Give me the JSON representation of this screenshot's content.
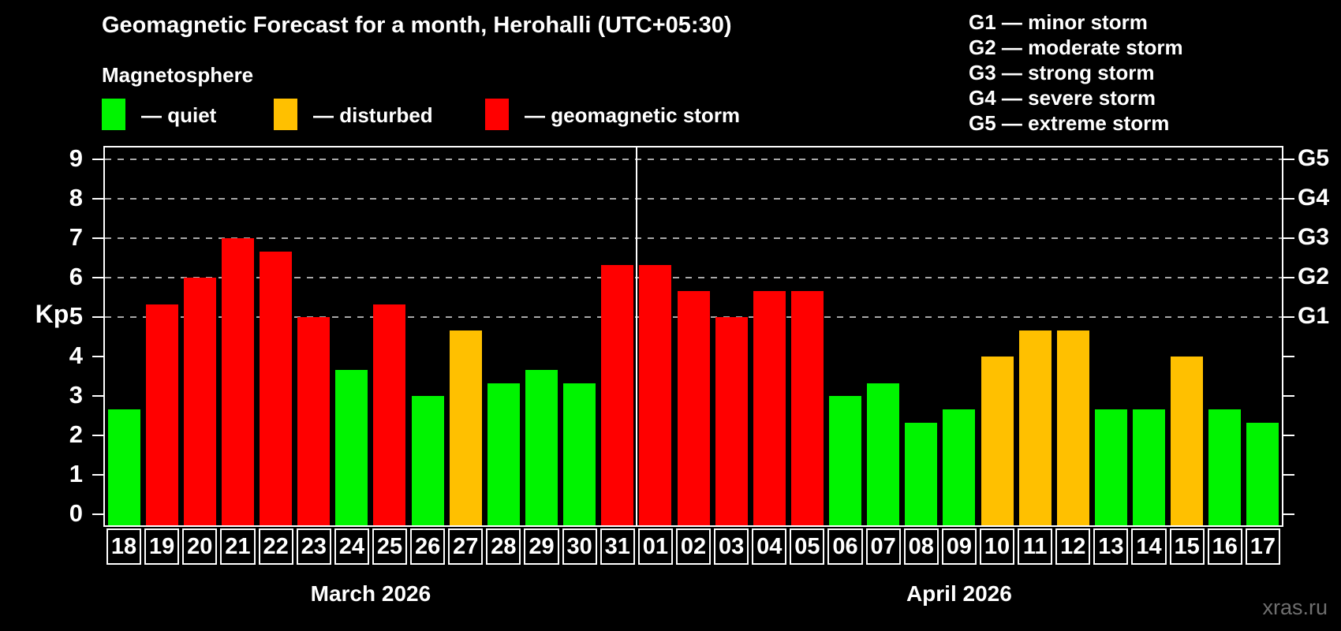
{
  "title": "Geomagnetic Forecast for a month, Herohalli (UTC+05:30)",
  "subtitle": "Magnetosphere",
  "legend": {
    "quiet_label": "— quiet",
    "disturbed_label": "— disturbed",
    "storm_label": "— geomagnetic storm"
  },
  "storm_scale_legend": [
    "G1 — minor storm",
    "G2 — moderate storm",
    "G3 — strong storm",
    "G4 — severe storm",
    "G5 — extreme storm"
  ],
  "watermark": "xras.ru",
  "colors": {
    "quiet": "#00f400",
    "disturbed": "#ffc000",
    "storm": "#ff0000",
    "background": "#000000",
    "text": "#ffffff",
    "grid": "#a8a8a8",
    "watermark": "#6f6f6f"
  },
  "chart_data": {
    "type": "bar",
    "title": "Geomagnetic Forecast for a month, Herohalli (UTC+05:30)",
    "ylabel": "Kp",
    "ylim": [
      -0.32,
      9.34
    ],
    "yticks": [
      0,
      1,
      2,
      3,
      4,
      5,
      6,
      7,
      8,
      9
    ],
    "grid_levels": [
      5,
      6,
      7,
      8,
      9
    ],
    "grid_style": "dashed, levels Kp 5-9 only",
    "legend_position": "top",
    "right_axis_labels": [
      {
        "kp": 5,
        "label": "G1"
      },
      {
        "kp": 6,
        "label": "G2"
      },
      {
        "kp": 7,
        "label": "G3"
      },
      {
        "kp": 8,
        "label": "G4"
      },
      {
        "kp": 9,
        "label": "G5"
      }
    ],
    "months": [
      {
        "label": "March 2026",
        "days": 14
      },
      {
        "label": "April 2026",
        "days": 17
      }
    ],
    "categories": [
      "18",
      "19",
      "20",
      "21",
      "22",
      "23",
      "24",
      "25",
      "26",
      "27",
      "28",
      "29",
      "30",
      "31",
      "01",
      "02",
      "03",
      "04",
      "05",
      "06",
      "07",
      "08",
      "09",
      "10",
      "11",
      "12",
      "13",
      "14",
      "15",
      "16",
      "17"
    ],
    "values": [
      2.67,
      5.33,
      6.0,
      7.0,
      6.67,
      5.0,
      3.67,
      5.33,
      3.0,
      4.67,
      3.33,
      3.67,
      3.33,
      6.33,
      6.33,
      5.67,
      5.0,
      5.67,
      5.67,
      3.0,
      3.33,
      2.33,
      2.67,
      4.0,
      4.67,
      4.67,
      2.67,
      2.67,
      4.0,
      2.67,
      2.33
    ],
    "status": [
      "quiet",
      "storm",
      "storm",
      "storm",
      "storm",
      "storm",
      "quiet",
      "storm",
      "quiet",
      "disturbed",
      "quiet",
      "quiet",
      "quiet",
      "storm",
      "storm",
      "storm",
      "storm",
      "storm",
      "storm",
      "quiet",
      "quiet",
      "quiet",
      "quiet",
      "disturbed",
      "disturbed",
      "disturbed",
      "quiet",
      "quiet",
      "disturbed",
      "quiet",
      "quiet"
    ]
  }
}
